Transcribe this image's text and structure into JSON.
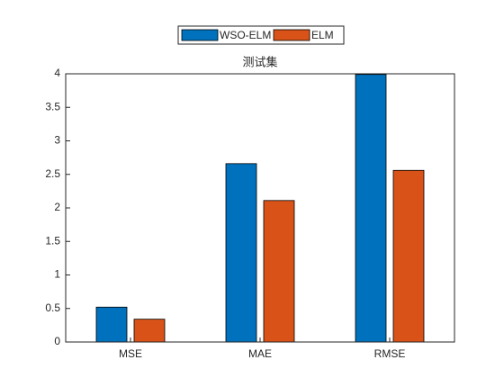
{
  "chart_data": {
    "type": "bar",
    "title": "测试集",
    "categories": [
      "MSE",
      "MAE",
      "RMSE"
    ],
    "series": [
      {
        "name": "WSO-ELM",
        "color": "#0072bd",
        "values": [
          0.52,
          2.66,
          3.99
        ]
      },
      {
        "name": "ELM",
        "color": "#d95319",
        "values": [
          0.34,
          2.11,
          2.56
        ]
      }
    ],
    "ylim": [
      0,
      4
    ],
    "yticks": [
      0,
      0.5,
      1,
      1.5,
      2,
      2.5,
      3,
      3.5,
      4
    ],
    "grid": false,
    "legend": "top"
  }
}
